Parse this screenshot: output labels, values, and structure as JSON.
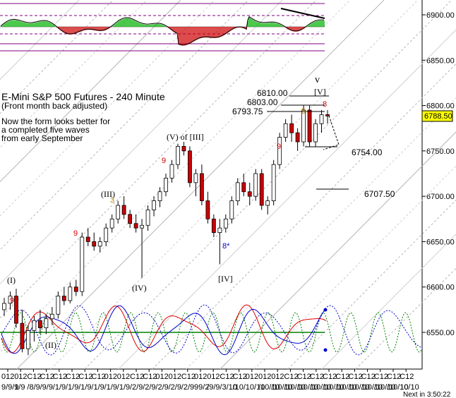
{
  "chart_data": {
    "type": "candlestick",
    "title": "E-Mini S&P 500 Futures - 240 Minute",
    "subtitle": "(Front month back adjusted)",
    "commentary": [
      "Now the form looks better for",
      "a completed five waves",
      "from early September"
    ],
    "y_axis": {
      "ticks": [
        6550.0,
        6600.0,
        6650.0,
        6700.0,
        6750.0,
        6800.0,
        6850.0,
        6900.0
      ],
      "ylim": [
        6520,
        6935
      ],
      "labels": [
        "6550.00",
        "6600.00",
        "6650.00",
        "6700.00",
        "6750.00",
        "6800.00",
        "6850.00",
        "6900.00"
      ]
    },
    "last_price": "6788.50",
    "x_tick_top": [
      "012",
      "012",
      "C12",
      "C12",
      "C12",
      "C12",
      "C12",
      "C12",
      "012",
      "012",
      "C12",
      "C12",
      "012",
      "012",
      "C12",
      "012",
      "012",
      "C12",
      "C12",
      "012",
      "012",
      "012",
      "C12",
      "C12",
      "C12",
      "C12",
      "C12",
      "C12",
      "C12",
      "C12",
      "C12",
      "C12"
    ],
    "x_tick_bottom": [
      "9/9/9",
      "1/9",
      "/8/9",
      "/9/9",
      "/1/9",
      "/1/9",
      "/1/9",
      "/1/9",
      "/1/9",
      "/1/9",
      "/2/9",
      "/2/9",
      "/2/9",
      "/2/9",
      "/2/9",
      "99/2",
      "/9/9",
      "/3/10",
      "/10/",
      "10/10",
      "/10/10",
      "/10/10",
      "/10/10",
      "/10/10",
      "/10/10",
      "/10/10",
      "/10/10",
      "/10/10",
      "/10/10",
      "/10/10",
      "/10/10",
      "10/10"
    ],
    "footer_time": "Next in 3:50:22",
    "levels": [
      {
        "label": "6810.00",
        "value": 6810.0
      },
      {
        "label": "6803.00",
        "value": 6803.0
      },
      {
        "label": "6793.75",
        "value": 6793.75
      },
      {
        "label": "6754.00",
        "value": 6754.0
      },
      {
        "label": "6707.50",
        "value": 6707.5
      }
    ],
    "wave_labels": [
      {
        "text": "(I)",
        "value": 6609
      },
      {
        "text": "(II)",
        "value": 6542
      },
      {
        "text": "(III)",
        "value": 6702
      },
      {
        "text": "(IV)",
        "value": 6597
      },
      {
        "text": "(V) of [III]",
        "value": 6763
      },
      {
        "text": "[IV]",
        "value": 6608
      },
      {
        "text": "v",
        "value": 6823
      },
      {
        "text": "[V]",
        "value": 6809
      }
    ],
    "td_counts": [
      {
        "text": "9",
        "color": "red"
      },
      {
        "text": "9",
        "color": "red"
      },
      {
        "text": "9",
        "color": "red"
      },
      {
        "text": "9",
        "color": "red"
      },
      {
        "text": "8",
        "color": "red"
      },
      {
        "text": "5",
        "color": "gold"
      },
      {
        "text": "3",
        "color": "gold"
      },
      {
        "text": "8*",
        "color": "blue"
      }
    ],
    "candles": [
      [
        6575.0,
        6588.0,
        6568.0,
        6582.0
      ],
      [
        6582.0,
        6595.0,
        6575.0,
        6590.0
      ],
      [
        6590.0,
        6598.0,
        6555.0,
        6560.0
      ],
      [
        6560.0,
        6575.0,
        6528.0,
        6532.0
      ],
      [
        6532.0,
        6558.0,
        6525.0,
        6552.0
      ],
      [
        6552.0,
        6568.0,
        6540.0,
        6563.0
      ],
      [
        6563.0,
        6575.0,
        6548.0,
        6555.0
      ],
      [
        6555.0,
        6570.0,
        6548.0,
        6565.0
      ],
      [
        6565.0,
        6578.0,
        6558.0,
        6570.0
      ],
      [
        6570.0,
        6595.0,
        6565.0,
        6590.0
      ],
      [
        6590.0,
        6600.0,
        6580.0,
        6585.0
      ],
      [
        6585.0,
        6605.0,
        6582.0,
        6600.0
      ],
      [
        6600.0,
        6608.0,
        6590.0,
        6595.0
      ],
      [
        6595.0,
        6660.0,
        6590.0,
        6655.0
      ],
      [
        6655.0,
        6665.0,
        6645.0,
        6650.0
      ],
      [
        6650.0,
        6660.0,
        6640.0,
        6645.0
      ],
      [
        6645.0,
        6655.0,
        6638.0,
        6650.0
      ],
      [
        6650.0,
        6670.0,
        6645.0,
        6665.0
      ],
      [
        6665.0,
        6680.0,
        6660.0,
        6675.0
      ],
      [
        6675.0,
        6695.0,
        6670.0,
        6690.0
      ],
      [
        6690.0,
        6700.0,
        6675.0,
        6680.0
      ],
      [
        6680.0,
        6685.0,
        6665.0,
        6670.0
      ],
      [
        6670.0,
        6680.0,
        6660.0,
        6665.0
      ],
      [
        6665.0,
        6675.0,
        6610.0,
        6668.0
      ],
      [
        6668.0,
        6690.0,
        6662.0,
        6685.0
      ],
      [
        6685.0,
        6700.0,
        6678.0,
        6695.0
      ],
      [
        6695.0,
        6710.0,
        6688.0,
        6705.0
      ],
      [
        6705.0,
        6725.0,
        6700.0,
        6720.0
      ],
      [
        6720.0,
        6740.0,
        6715.0,
        6735.0
      ],
      [
        6735.0,
        6758.0,
        6730.0,
        6755.0
      ],
      [
        6755.0,
        6760.0,
        6745.0,
        6750.0
      ],
      [
        6750.0,
        6755.0,
        6710.0,
        6715.0
      ],
      [
        6715.0,
        6730.0,
        6700.0,
        6725.0
      ],
      [
        6725.0,
        6735.0,
        6690.0,
        6695.0
      ],
      [
        6695.0,
        6705.0,
        6670.0,
        6675.0
      ],
      [
        6675.0,
        6680.0,
        6655.0,
        6660.0
      ],
      [
        6660.0,
        6675.0,
        6625.0,
        6665.0
      ],
      [
        6665.0,
        6680.0,
        6660.0,
        6675.0
      ],
      [
        6675.0,
        6700.0,
        6670.0,
        6695.0
      ],
      [
        6695.0,
        6720.0,
        6690.0,
        6715.0
      ],
      [
        6715.0,
        6725.0,
        6700.0,
        6705.0
      ],
      [
        6705.0,
        6715.0,
        6690.0,
        6700.0
      ],
      [
        6700.0,
        6730.0,
        6695.0,
        6725.0
      ],
      [
        6725.0,
        6730.0,
        6685.0,
        6690.0
      ],
      [
        6690.0,
        6700.0,
        6680.0,
        6695.0
      ],
      [
        6695.0,
        6740.0,
        6690.0,
        6735.0
      ],
      [
        6735.0,
        6770.0,
        6730.0,
        6765.0
      ],
      [
        6765.0,
        6785.0,
        6760.0,
        6780.0
      ],
      [
        6780.0,
        6790.0,
        6760.0,
        6770.0
      ],
      [
        6770.0,
        6775.0,
        6750.0,
        6760.0
      ],
      [
        6760.0,
        6800.0,
        6755.0,
        6795.0
      ],
      [
        6795.0,
        6800.0,
        6755.0,
        6760.0
      ],
      [
        6760.0,
        6785.0,
        6755.0,
        6780.0
      ],
      [
        6780.0,
        6795.0,
        6770.0,
        6790.0
      ],
      [
        6790.0,
        6795.0,
        6780.0,
        6788.5
      ]
    ],
    "oscillator": {
      "type": "histogram",
      "note": "momentum histogram, green positive / red negative"
    },
    "cycles": {
      "series": [
        "red oscillator",
        "blue oscillator",
        "green dashed cycle",
        "blue dashed projection"
      ],
      "baseline_color": "#008000"
    }
  }
}
